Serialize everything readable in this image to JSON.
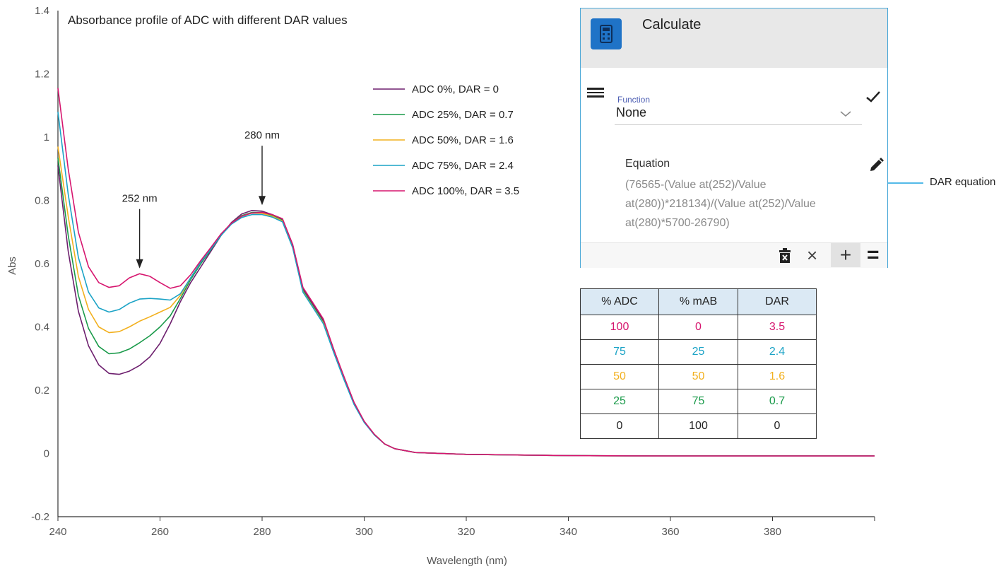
{
  "chart_data": {
    "type": "line",
    "title": "Absorbance profile of ADC with different DAR values",
    "xlabel": "Wavelength (nm)",
    "ylabel": "Abs",
    "xlim": [
      240,
      400
    ],
    "ylim": [
      -0.2,
      1.4
    ],
    "x_ticks": [
      "240",
      "260",
      "280",
      "300",
      "320",
      "340",
      "360",
      "380"
    ],
    "y_ticks": [
      "-0.2",
      "0",
      "0.2",
      "0.4",
      "0.6",
      "0.8",
      "1",
      "1.2",
      "1.4"
    ],
    "legend_position": "top-center",
    "series": [
      {
        "name": "ADC 0%, DAR = 0",
        "color": "#6d1f6e",
        "points": [
          [
            240,
            0.91
          ],
          [
            242,
            0.64
          ],
          [
            244,
            0.45
          ],
          [
            246,
            0.34
          ],
          [
            248,
            0.28
          ],
          [
            250,
            0.253
          ],
          [
            252,
            0.25
          ],
          [
            254,
            0.26
          ],
          [
            256,
            0.278
          ],
          [
            258,
            0.305
          ],
          [
            260,
            0.348
          ],
          [
            262,
            0.41
          ],
          [
            264,
            0.48
          ],
          [
            266,
            0.54
          ],
          [
            268,
            0.59
          ],
          [
            270,
            0.64
          ],
          [
            272,
            0.69
          ],
          [
            274,
            0.73
          ],
          [
            276,
            0.757
          ],
          [
            278,
            0.768
          ],
          [
            280,
            0.766
          ],
          [
            282,
            0.755
          ],
          [
            284,
            0.74
          ],
          [
            286,
            0.66
          ],
          [
            288,
            0.52
          ],
          [
            290,
            0.47
          ],
          [
            292,
            0.42
          ],
          [
            294,
            0.33
          ],
          [
            296,
            0.24
          ],
          [
            298,
            0.16
          ],
          [
            300,
            0.1
          ],
          [
            302,
            0.06
          ],
          [
            304,
            0.03
          ],
          [
            306,
            0.015
          ],
          [
            310,
            0.003
          ],
          [
            320,
            -0.003
          ],
          [
            340,
            -0.007
          ],
          [
            360,
            -0.008
          ],
          [
            380,
            -0.008
          ],
          [
            400,
            -0.008
          ]
        ]
      },
      {
        "name": "ADC 25%, DAR = 0.7",
        "color": "#1a9a4a",
        "points": [
          [
            240,
            0.935
          ],
          [
            242,
            0.69
          ],
          [
            244,
            0.5
          ],
          [
            246,
            0.395
          ],
          [
            248,
            0.338
          ],
          [
            250,
            0.315
          ],
          [
            252,
            0.318
          ],
          [
            254,
            0.33
          ],
          [
            256,
            0.35
          ],
          [
            258,
            0.372
          ],
          [
            260,
            0.4
          ],
          [
            262,
            0.435
          ],
          [
            264,
            0.49
          ],
          [
            266,
            0.55
          ],
          [
            268,
            0.6
          ],
          [
            270,
            0.645
          ],
          [
            272,
            0.69
          ],
          [
            274,
            0.728
          ],
          [
            276,
            0.752
          ],
          [
            278,
            0.762
          ],
          [
            280,
            0.762
          ],
          [
            282,
            0.752
          ],
          [
            284,
            0.737
          ],
          [
            286,
            0.655
          ],
          [
            288,
            0.515
          ],
          [
            290,
            0.465
          ],
          [
            292,
            0.415
          ],
          [
            294,
            0.325
          ],
          [
            296,
            0.24
          ],
          [
            298,
            0.16
          ],
          [
            300,
            0.1
          ],
          [
            302,
            0.06
          ],
          [
            304,
            0.03
          ],
          [
            306,
            0.015
          ],
          [
            310,
            0.003
          ],
          [
            320,
            -0.003
          ],
          [
            340,
            -0.007
          ],
          [
            360,
            -0.008
          ],
          [
            380,
            -0.008
          ],
          [
            400,
            -0.008
          ]
        ]
      },
      {
        "name": "ADC 50%, DAR = 1.6",
        "color": "#f2b01e",
        "points": [
          [
            240,
            0.97
          ],
          [
            242,
            0.75
          ],
          [
            244,
            0.56
          ],
          [
            246,
            0.455
          ],
          [
            248,
            0.4
          ],
          [
            250,
            0.382
          ],
          [
            252,
            0.385
          ],
          [
            254,
            0.4
          ],
          [
            256,
            0.418
          ],
          [
            258,
            0.432
          ],
          [
            260,
            0.447
          ],
          [
            262,
            0.462
          ],
          [
            264,
            0.5
          ],
          [
            266,
            0.555
          ],
          [
            268,
            0.605
          ],
          [
            270,
            0.648
          ],
          [
            272,
            0.692
          ],
          [
            274,
            0.728
          ],
          [
            276,
            0.75
          ],
          [
            278,
            0.76
          ],
          [
            280,
            0.759
          ],
          [
            282,
            0.75
          ],
          [
            284,
            0.735
          ],
          [
            286,
            0.652
          ],
          [
            288,
            0.512
          ],
          [
            290,
            0.462
          ],
          [
            292,
            0.412
          ],
          [
            294,
            0.323
          ],
          [
            296,
            0.238
          ],
          [
            298,
            0.158
          ],
          [
            300,
            0.1
          ],
          [
            302,
            0.06
          ],
          [
            304,
            0.03
          ],
          [
            306,
            0.015
          ],
          [
            310,
            0.003
          ],
          [
            320,
            -0.003
          ],
          [
            340,
            -0.007
          ],
          [
            360,
            -0.008
          ],
          [
            380,
            -0.008
          ],
          [
            400,
            -0.008
          ]
        ]
      },
      {
        "name": "ADC 75%, DAR = 2.4",
        "color": "#1ba3c6",
        "points": [
          [
            240,
            1.08
          ],
          [
            242,
            0.82
          ],
          [
            244,
            0.62
          ],
          [
            246,
            0.51
          ],
          [
            248,
            0.46
          ],
          [
            250,
            0.447
          ],
          [
            252,
            0.455
          ],
          [
            254,
            0.475
          ],
          [
            256,
            0.488
          ],
          [
            258,
            0.49
          ],
          [
            260,
            0.488
          ],
          [
            262,
            0.485
          ],
          [
            264,
            0.505
          ],
          [
            266,
            0.555
          ],
          [
            268,
            0.605
          ],
          [
            270,
            0.647
          ],
          [
            272,
            0.69
          ],
          [
            274,
            0.725
          ],
          [
            276,
            0.746
          ],
          [
            278,
            0.755
          ],
          [
            280,
            0.755
          ],
          [
            282,
            0.747
          ],
          [
            284,
            0.732
          ],
          [
            286,
            0.65
          ],
          [
            288,
            0.51
          ],
          [
            290,
            0.46
          ],
          [
            292,
            0.41
          ],
          [
            294,
            0.32
          ],
          [
            296,
            0.235
          ],
          [
            298,
            0.155
          ],
          [
            300,
            0.098
          ],
          [
            302,
            0.058
          ],
          [
            304,
            0.03
          ],
          [
            306,
            0.015
          ],
          [
            310,
            0.003
          ],
          [
            320,
            -0.003
          ],
          [
            340,
            -0.007
          ],
          [
            360,
            -0.008
          ],
          [
            380,
            -0.008
          ],
          [
            400,
            -0.008
          ]
        ]
      },
      {
        "name": "ADC 100%, DAR = 3.5",
        "color": "#d6156e",
        "points": [
          [
            240,
            1.155
          ],
          [
            242,
            0.9
          ],
          [
            244,
            0.7
          ],
          [
            246,
            0.59
          ],
          [
            248,
            0.54
          ],
          [
            250,
            0.525
          ],
          [
            252,
            0.53
          ],
          [
            254,
            0.555
          ],
          [
            256,
            0.568
          ],
          [
            258,
            0.56
          ],
          [
            260,
            0.54
          ],
          [
            262,
            0.522
          ],
          [
            264,
            0.53
          ],
          [
            266,
            0.565
          ],
          [
            268,
            0.61
          ],
          [
            270,
            0.652
          ],
          [
            272,
            0.695
          ],
          [
            274,
            0.728
          ],
          [
            276,
            0.75
          ],
          [
            278,
            0.76
          ],
          [
            280,
            0.762
          ],
          [
            282,
            0.755
          ],
          [
            284,
            0.742
          ],
          [
            286,
            0.66
          ],
          [
            288,
            0.525
          ],
          [
            290,
            0.475
          ],
          [
            292,
            0.425
          ],
          [
            294,
            0.33
          ],
          [
            296,
            0.245
          ],
          [
            298,
            0.162
          ],
          [
            300,
            0.102
          ],
          [
            302,
            0.06
          ],
          [
            304,
            0.03
          ],
          [
            306,
            0.015
          ],
          [
            310,
            0.003
          ],
          [
            320,
            -0.003
          ],
          [
            340,
            -0.007
          ],
          [
            360,
            -0.008
          ],
          [
            380,
            -0.008
          ],
          [
            400,
            -0.008
          ]
        ]
      }
    ],
    "annotations": [
      {
        "text": "252 nm",
        "x": 256,
        "y": 0.585
      },
      {
        "text": "280 nm",
        "x": 280,
        "y": 0.785
      }
    ]
  },
  "calculate_panel": {
    "title": "Calculate",
    "function_label": "Function",
    "function_value": "None",
    "equation_label": "Equation",
    "equation_value": "(76565-(Value at(252)/Value at(280))*218134)/(Value at(252)/Value at(280)*5700-26790)",
    "close_symbol": "×",
    "plus_symbol": "+",
    "equals_symbol": "="
  },
  "callout": {
    "text": "DAR equation",
    "color": "#1ba3e0"
  },
  "dar_table": {
    "headers": [
      "% ADC",
      "% mAB",
      "DAR"
    ],
    "rows": [
      {
        "cells": [
          "100",
          "0",
          "3.5"
        ],
        "color": "#d6156e"
      },
      {
        "cells": [
          "75",
          "25",
          "2.4"
        ],
        "color": "#1ba3c6"
      },
      {
        "cells": [
          "50",
          "50",
          "1.6"
        ],
        "color": "#f2b01e"
      },
      {
        "cells": [
          "25",
          "75",
          "0.7"
        ],
        "color": "#1a9a4a"
      },
      {
        "cells": [
          "0",
          "100",
          "0"
        ],
        "color": "#222222"
      }
    ]
  }
}
